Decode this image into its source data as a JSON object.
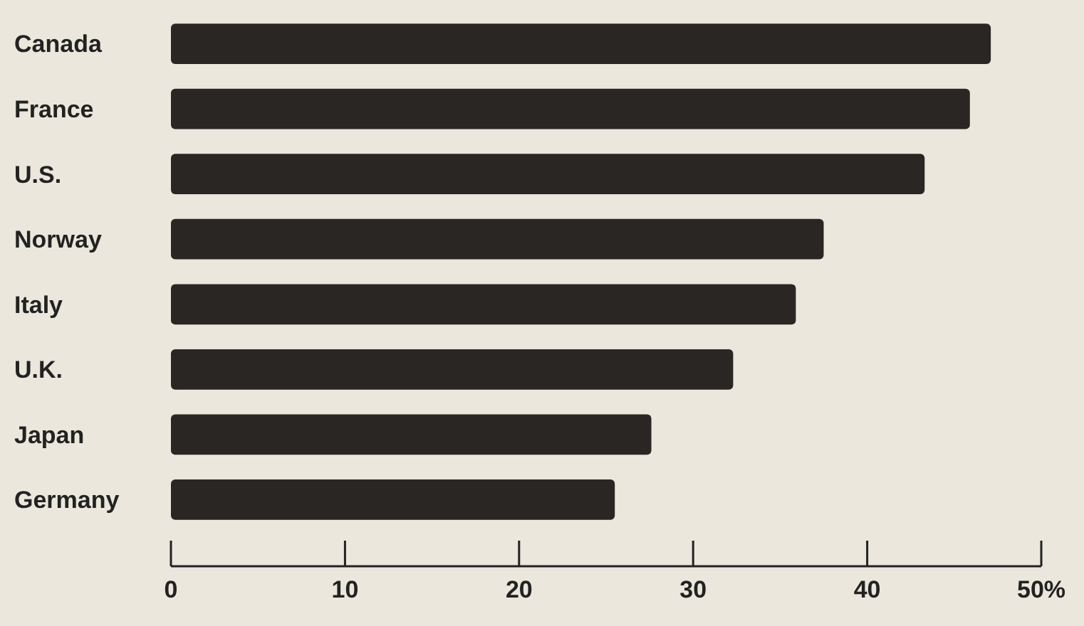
{
  "chart_data": {
    "type": "bar",
    "orientation": "horizontal",
    "categories": [
      "Canada",
      "France",
      "U.S.",
      "Norway",
      "Italy",
      "U.K.",
      "Japan",
      "Germany"
    ],
    "values": [
      47.1,
      45.9,
      43.3,
      37.5,
      35.9,
      32.3,
      27.6,
      25.5
    ],
    "color": "#2a2624",
    "xlim": [
      0,
      50
    ],
    "xticks": [
      0,
      10,
      20,
      30,
      40,
      {
        "value": 50,
        "label": "50%"
      }
    ],
    "grid": false
  }
}
